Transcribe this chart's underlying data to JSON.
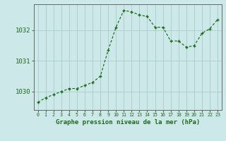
{
  "x": [
    0,
    1,
    2,
    3,
    4,
    5,
    6,
    7,
    8,
    9,
    10,
    11,
    12,
    13,
    14,
    15,
    16,
    17,
    18,
    19,
    20,
    21,
    22,
    23
  ],
  "y": [
    1029.65,
    1029.8,
    1029.9,
    1030.0,
    1030.1,
    1030.1,
    1030.2,
    1030.3,
    1030.5,
    1031.35,
    1032.1,
    1032.65,
    1032.6,
    1032.5,
    1032.45,
    1032.1,
    1032.1,
    1031.65,
    1031.65,
    1031.45,
    1031.5,
    1031.9,
    1032.05,
    1032.35
  ],
  "line_color": "#1a6b1a",
  "marker_color": "#1a6b1a",
  "bg_color": "#cce8e8",
  "grid_color": "#aacccc",
  "xlabel": "Graphe pression niveau de la mer (hPa)",
  "yticks": [
    1030,
    1031,
    1032
  ],
  "ylim": [
    1029.4,
    1032.85
  ],
  "xlim": [
    -0.5,
    23.5
  ],
  "xlabel_color": "#1a6b1a",
  "tick_color": "#1a6b1a",
  "axis_color": "#666666",
  "xlabel_fontsize": 6.5,
  "ytick_fontsize": 6.5,
  "xtick_fontsize": 4.8
}
